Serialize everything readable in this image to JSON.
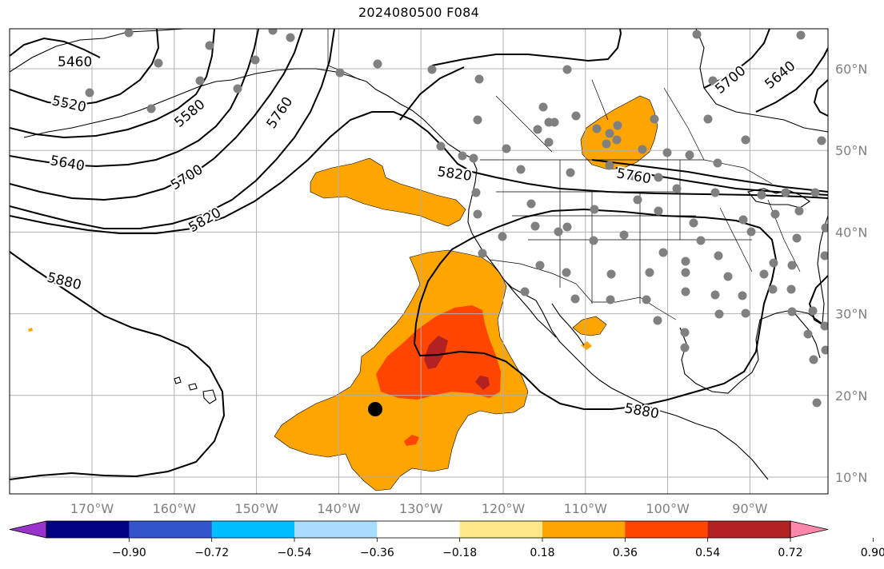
{
  "title": "2024080500 F084",
  "lat_ticks": [
    {
      "value": 60,
      "label": "60°N"
    },
    {
      "value": 50,
      "label": "50°N"
    },
    {
      "value": 40,
      "label": "40°N"
    },
    {
      "value": 30,
      "label": "30°N"
    },
    {
      "value": 20,
      "label": "20°N"
    },
    {
      "value": 10,
      "label": "10°N"
    }
  ],
  "lon_ticks": [
    {
      "value": -170,
      "label": "170°W"
    },
    {
      "value": -160,
      "label": "160°W"
    },
    {
      "value": -150,
      "label": "150°W"
    },
    {
      "value": -140,
      "label": "140°W"
    },
    {
      "value": -130,
      "label": "130°W"
    },
    {
      "value": -120,
      "label": "120°W"
    },
    {
      "value": -110,
      "label": "110°W"
    },
    {
      "value": -100,
      "label": "100°W"
    },
    {
      "value": -90,
      "label": "90°W"
    }
  ],
  "contour_labels": [
    "5460",
    "5520",
    "5580",
    "5640",
    "5700",
    "5760",
    "5820",
    "5880"
  ],
  "colorbar": {
    "ticks": [
      "−0.90",
      "−0.72",
      "−0.54",
      "−0.36",
      "−0.18",
      "0.18",
      "0.36",
      "0.54",
      "0.72",
      "0.90"
    ],
    "colors": [
      "#9933cc",
      "#000080",
      "#3355cc",
      "#00bfff",
      "#aadcff",
      "#ffffff",
      "#ffe88a",
      "#ffa500",
      "#ff4500",
      "#b22222",
      "#ff88aa"
    ]
  },
  "colors": {
    "anomaly_orange": "#ffa500",
    "anomaly_red": "#ff4500",
    "anomaly_darkred": "#b22222",
    "station_dot": "#808080",
    "grid": "#b0b0b0"
  }
}
